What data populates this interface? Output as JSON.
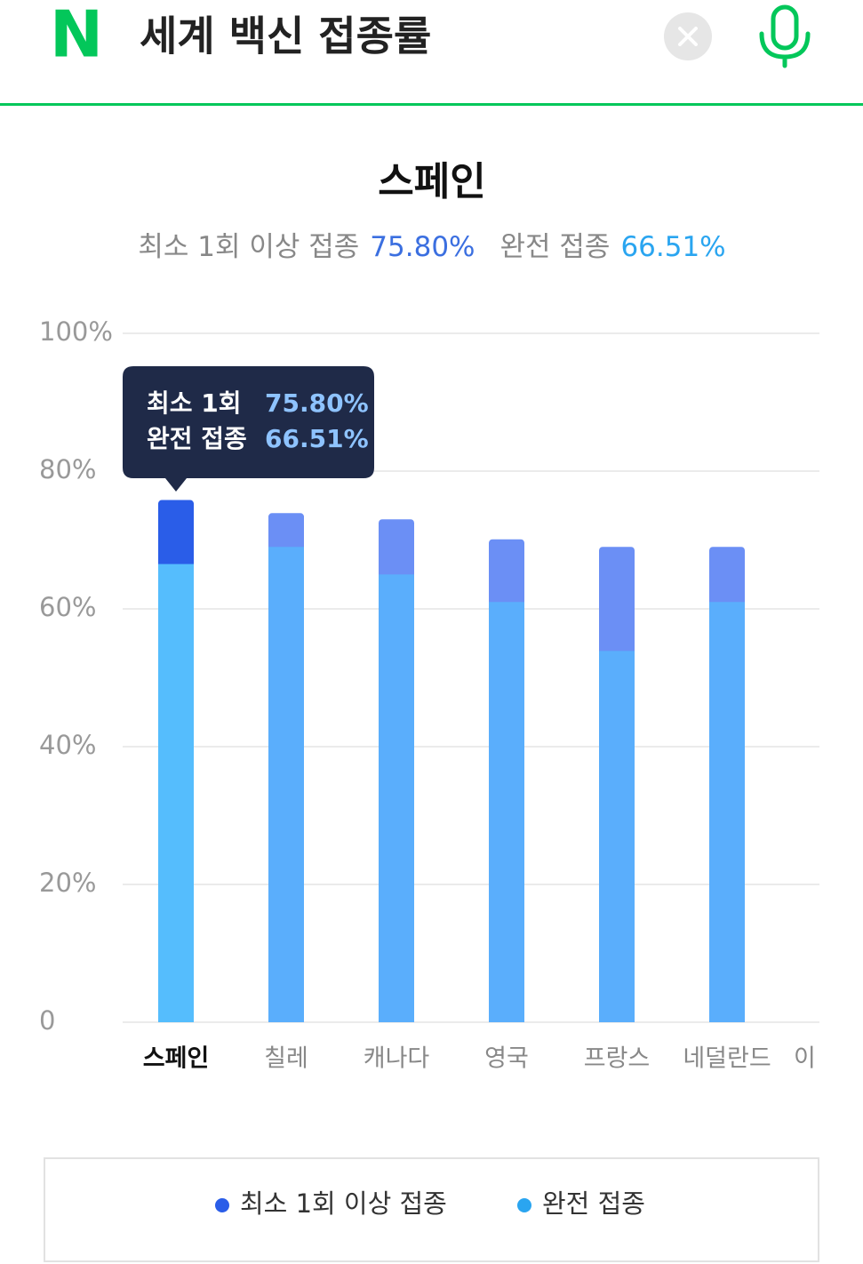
{
  "header": {
    "logo": "N",
    "title": "세계 백신 접종률"
  },
  "chart_data": {
    "type": "bar",
    "title": "스페인",
    "categories": [
      "스페인",
      "칠레",
      "캐나다",
      "영국",
      "프랑스",
      "네덜란드",
      "이"
    ],
    "series": [
      {
        "name": "최소 1회 이상 접종",
        "color": "#6b8ff5",
        "highlight_color": "#2a5de8",
        "legend_color": "#2a5de8",
        "values": [
          75.8,
          73.9,
          73.0,
          70.1,
          69.0,
          69.0,
          null
        ],
        "value_labels": [
          "75.80%",
          null,
          null,
          null,
          null,
          null,
          null
        ]
      },
      {
        "name": "완전 접종",
        "color": "#5aaefc",
        "highlight_color": "#55bdfd",
        "legend_color": "#2aa5f0",
        "values": [
          66.51,
          69.0,
          65.0,
          61.0,
          53.9,
          61.0,
          null
        ],
        "value_labels": [
          "66.51%",
          null,
          null,
          null,
          null,
          null,
          null
        ]
      }
    ],
    "tooltip": {
      "labels": [
        "최소 1회",
        "완전 접종"
      ]
    },
    "ylim": [
      0,
      100
    ],
    "yticks": [
      0,
      {
        "value": 20,
        "label": "20%"
      },
      {
        "value": 40,
        "label": "40%"
      },
      {
        "value": 60,
        "label": "60%"
      },
      {
        "value": 80,
        "label": "80%"
      },
      {
        "value": 100,
        "label": "100%"
      }
    ],
    "grid": true
  }
}
